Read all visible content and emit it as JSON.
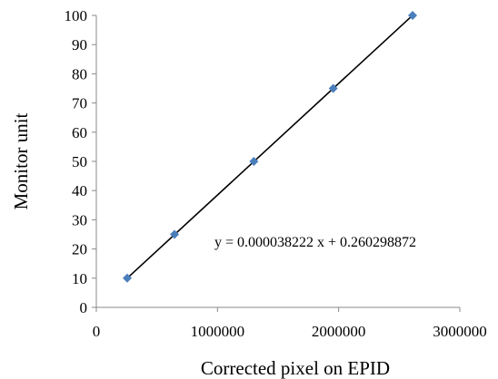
{
  "chart_data": {
    "type": "scatter",
    "xlabel": "Corrected pixel on EPID",
    "ylabel": "Monitor unit",
    "xlim": [
      0,
      3000000
    ],
    "ylim": [
      0,
      100
    ],
    "x_ticks": [
      0,
      1000000,
      2000000,
      3000000
    ],
    "x_tick_labels": [
      "0",
      "1000000",
      "2000000",
      "3000000"
    ],
    "y_ticks": [
      0,
      10,
      20,
      30,
      40,
      50,
      60,
      70,
      80,
      90,
      100
    ],
    "y_tick_labels": [
      "0",
      "10",
      "20",
      "30",
      "40",
      "50",
      "60",
      "70",
      "80",
      "90",
      "100"
    ],
    "grid": false,
    "marker": "diamond",
    "marker_color": "#4a7ebb",
    "line_color": "#000000",
    "series": [
      {
        "x": [
          255000,
          645000,
          1300000,
          1955000,
          2610000
        ],
        "y": [
          10,
          25,
          50,
          75,
          100
        ]
      }
    ],
    "trendline": {
      "slope": 3.8222e-05,
      "intercept": 0.260298872,
      "x_range": [
        255000,
        2610000
      ]
    },
    "annotations": [
      {
        "text": "y = 0.000038222 x + 0.260298872"
      }
    ]
  }
}
